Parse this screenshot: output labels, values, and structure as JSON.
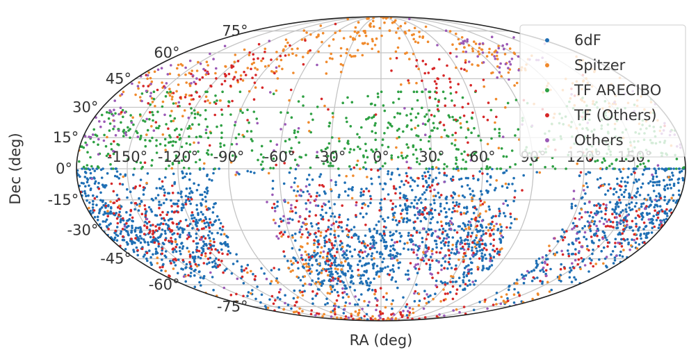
{
  "chart_data": {
    "type": "scatter",
    "projection": "mollweide",
    "title": "",
    "xlabel": "RA (deg)",
    "ylabel": "Dec (deg)",
    "grid": true,
    "legend_placement": "top-right",
    "x_ticks": [
      "-150°",
      "-120°",
      "-90°",
      "-60°",
      "-30°",
      "0°",
      "30°",
      "60°",
      "90°",
      "120°",
      "150°"
    ],
    "y_ticks": [
      "-75°",
      "-60°",
      "-45°",
      "-30°",
      "-15°",
      "0°",
      "15°",
      "30°",
      "45°",
      "60°",
      "75°"
    ],
    "xlim": [
      -180,
      180
    ],
    "ylim": [
      -90,
      90
    ],
    "series": [
      {
        "name": "6dF",
        "color": "#1f6fb4",
        "dec_range": [
          -90,
          0
        ],
        "approx_points": [
          [
            -170,
            -30
          ],
          [
            -140,
            -40
          ],
          [
            -110,
            -20
          ],
          [
            -40,
            -50
          ],
          [
            0,
            -40
          ],
          [
            30,
            -20
          ],
          [
            60,
            -35
          ],
          [
            100,
            -50
          ],
          [
            150,
            -25
          ],
          [
            170,
            -10
          ]
        ]
      },
      {
        "name": "Spitzer",
        "color": "#f08a2c",
        "dec_range": [
          -90,
          90
        ],
        "approx_points": [
          [
            -150,
            40
          ],
          [
            -90,
            55
          ],
          [
            -30,
            70
          ],
          [
            30,
            75
          ],
          [
            90,
            60
          ],
          [
            150,
            35
          ],
          [
            -60,
            -45
          ],
          [
            60,
            -30
          ]
        ]
      },
      {
        "name": "TF ARECIBO",
        "color": "#2ea043",
        "dec_range": [
          0,
          38
        ],
        "approx_points": [
          [
            -160,
            15
          ],
          [
            -130,
            25
          ],
          [
            -110,
            20
          ],
          [
            -40,
            15
          ],
          [
            0,
            20
          ],
          [
            30,
            25
          ],
          [
            60,
            5
          ],
          [
            130,
            20
          ],
          [
            160,
            15
          ]
        ]
      },
      {
        "name": "TF (Others)",
        "color": "#d62728",
        "dec_range": [
          -90,
          90
        ],
        "approx_points": [
          [
            -150,
            -25
          ],
          [
            -130,
            -35
          ],
          [
            -40,
            -30
          ],
          [
            20,
            -15
          ],
          [
            60,
            -40
          ],
          [
            150,
            -30
          ],
          [
            -110,
            45
          ],
          [
            40,
            40
          ]
        ]
      },
      {
        "name": "Others",
        "color": "#9b59b6",
        "dec_range": [
          -90,
          90
        ],
        "approx_points": [
          [
            -170,
            20
          ],
          [
            -150,
            45
          ],
          [
            -60,
            -20
          ],
          [
            40,
            -40
          ],
          [
            130,
            -30
          ],
          [
            100,
            60
          ]
        ]
      }
    ]
  }
}
